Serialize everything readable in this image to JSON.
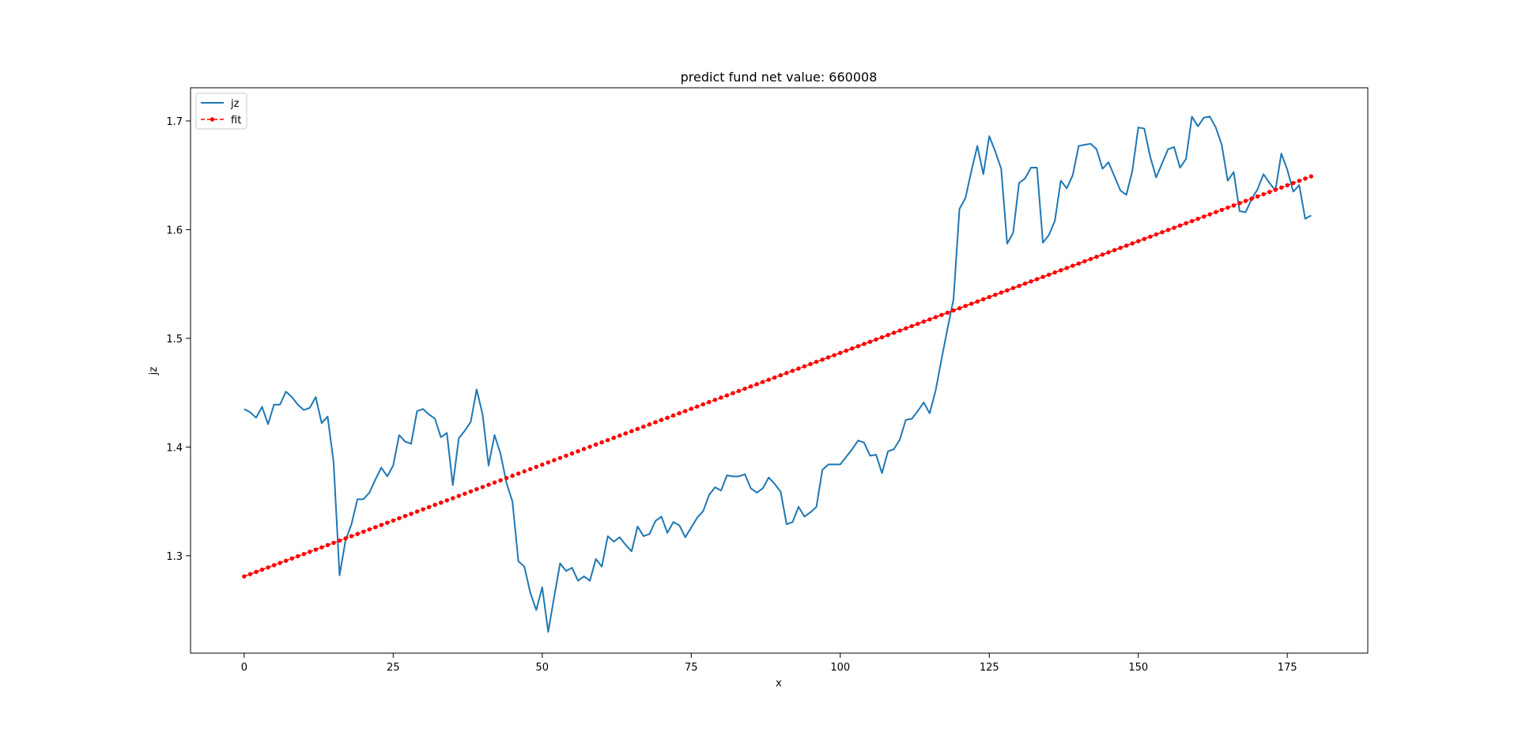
{
  "chart_data": {
    "type": "line",
    "title": "predict fund net value: 660008",
    "xlabel": "x",
    "ylabel": "jz",
    "xlim": [
      -9,
      188.5
    ],
    "ylim": [
      1.2104,
      1.7305
    ],
    "xticks": [
      0,
      25,
      50,
      75,
      100,
      125,
      150,
      175
    ],
    "yticks": [
      1.3,
      1.4,
      1.5,
      1.6,
      1.7
    ],
    "grid": false,
    "legend_position": "upper-left",
    "series": [
      {
        "name": "jz",
        "color": "#1f77b4",
        "style": "solid",
        "x_start": 0,
        "values": [
          1.435,
          1.432,
          1.427,
          1.437,
          1.421,
          1.439,
          1.439,
          1.451,
          1.446,
          1.439,
          1.434,
          1.436,
          1.446,
          1.422,
          1.428,
          1.386,
          1.282,
          1.314,
          1.329,
          1.352,
          1.352,
          1.358,
          1.37,
          1.381,
          1.373,
          1.383,
          1.411,
          1.405,
          1.403,
          1.433,
          1.435,
          1.43,
          1.426,
          1.409,
          1.413,
          1.365,
          1.408,
          1.415,
          1.423,
          1.453,
          1.43,
          1.383,
          1.411,
          1.394,
          1.367,
          1.35,
          1.295,
          1.29,
          1.266,
          1.25,
          1.271,
          1.23,
          1.262,
          1.293,
          1.286,
          1.289,
          1.277,
          1.281,
          1.277,
          1.297,
          1.29,
          1.318,
          1.313,
          1.317,
          1.31,
          1.304,
          1.327,
          1.318,
          1.32,
          1.332,
          1.336,
          1.321,
          1.331,
          1.328,
          1.317,
          1.326,
          1.335,
          1.341,
          1.356,
          1.363,
          1.36,
          1.374,
          1.373,
          1.373,
          1.375,
          1.362,
          1.358,
          1.362,
          1.372,
          1.366,
          1.359,
          1.329,
          1.331,
          1.345,
          1.336,
          1.34,
          1.345,
          1.379,
          1.384,
          1.384,
          1.384,
          1.391,
          1.398,
          1.406,
          1.404,
          1.392,
          1.393,
          1.376,
          1.396,
          1.398,
          1.407,
          1.425,
          1.426,
          1.433,
          1.441,
          1.431,
          1.452,
          1.481,
          1.509,
          1.536,
          1.619,
          1.629,
          1.654,
          1.677,
          1.651,
          1.686,
          1.672,
          1.656,
          1.587,
          1.597,
          1.643,
          1.647,
          1.657,
          1.657,
          1.588,
          1.595,
          1.608,
          1.645,
          1.638,
          1.65,
          1.677,
          1.678,
          1.679,
          1.674,
          1.656,
          1.662,
          1.649,
          1.636,
          1.632,
          1.654,
          1.694,
          1.693,
          1.667,
          1.648,
          1.661,
          1.674,
          1.676,
          1.657,
          1.665,
          1.704,
          1.695,
          1.703,
          1.704,
          1.694,
          1.678,
          1.645,
          1.653,
          1.617,
          1.616,
          1.628,
          1.637,
          1.651,
          1.643,
          1.636,
          1.67,
          1.655,
          1.635,
          1.641,
          1.61,
          1.613
        ]
      },
      {
        "name": "fit",
        "color": "#ff0000",
        "style": "dashed-dotted-markers",
        "x_start": 0,
        "x_end": 179,
        "y_start": 1.281,
        "y_end": 1.649
      }
    ]
  }
}
